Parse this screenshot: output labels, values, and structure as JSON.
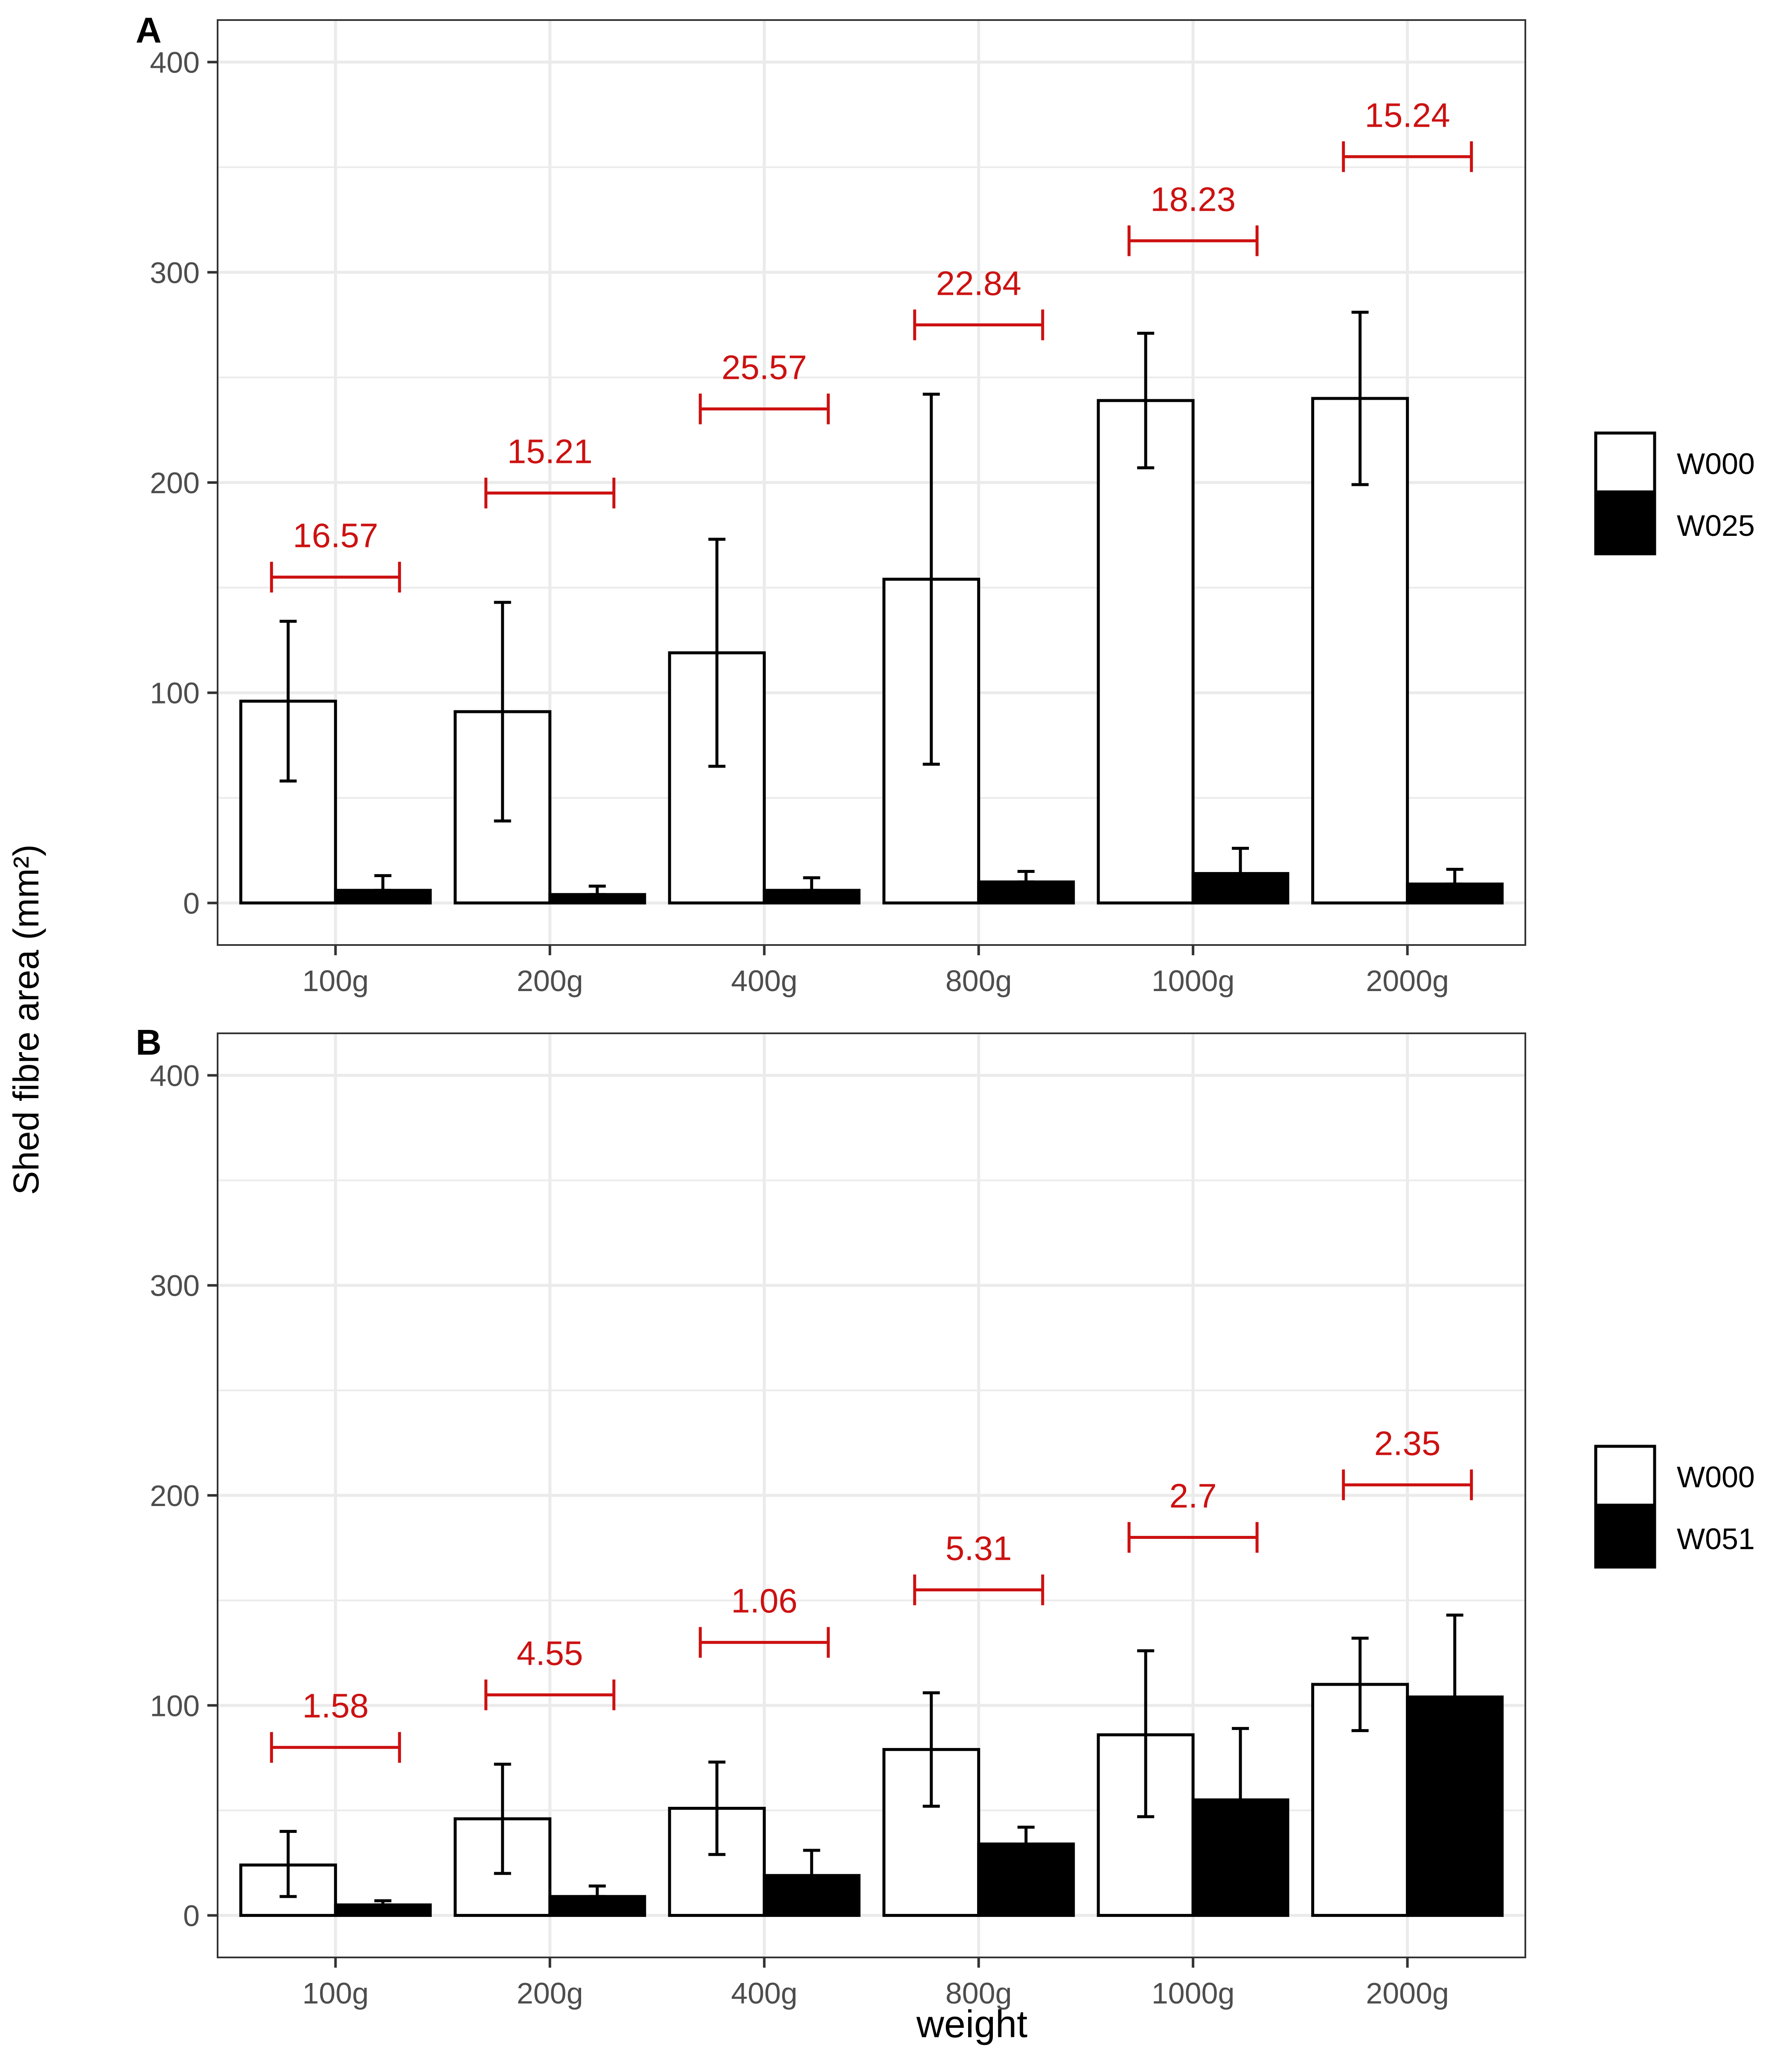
{
  "figure": {
    "ylabel": "Shed fibre area (mm²)",
    "xlabel": "weight"
  },
  "colors": {
    "bar_outline": "#000000",
    "grid": "#ebebeb",
    "axis_text": "#4d4d4d",
    "annotation": "#cc1111",
    "panel_border": "#333333"
  },
  "chart_data": [
    {
      "type": "bar",
      "panel_label": "A",
      "categories": [
        "100g",
        "200g",
        "400g",
        "800g",
        "1000g",
        "2000g"
      ],
      "ylim": [
        -20,
        420
      ],
      "yticks": [
        0,
        100,
        200,
        300,
        400
      ],
      "grid": true,
      "legend_position": "right",
      "series": [
        {
          "name": "W000",
          "fill": "#ffffff",
          "values": [
            96,
            91,
            119,
            154,
            239,
            240
          ],
          "error_low": [
            58,
            39,
            65,
            66,
            207,
            199
          ],
          "error_high": [
            134,
            143,
            173,
            242,
            271,
            281
          ]
        },
        {
          "name": "W025",
          "fill": "#000000",
          "values": [
            6,
            4,
            6,
            10,
            14,
            9
          ],
          "error_low": [
            6,
            4,
            6,
            10,
            14,
            9
          ],
          "error_high": [
            13,
            8,
            12,
            15,
            26,
            16
          ]
        }
      ],
      "annotations": [
        {
          "category": "100g",
          "y": 155,
          "text": "16.57"
        },
        {
          "category": "200g",
          "y": 195,
          "text": "15.21"
        },
        {
          "category": "400g",
          "y": 235,
          "text": "25.57"
        },
        {
          "category": "800g",
          "y": 275,
          "text": "22.84"
        },
        {
          "category": "1000g",
          "y": 315,
          "text": "18.23"
        },
        {
          "category": "2000g",
          "y": 355,
          "text": "15.24"
        }
      ]
    },
    {
      "type": "bar",
      "panel_label": "B",
      "categories": [
        "100g",
        "200g",
        "400g",
        "800g",
        "1000g",
        "2000g"
      ],
      "ylim": [
        -20,
        420
      ],
      "yticks": [
        0,
        100,
        200,
        300,
        400
      ],
      "grid": true,
      "legend_position": "right",
      "series": [
        {
          "name": "W000",
          "fill": "#ffffff",
          "values": [
            24,
            46,
            51,
            79,
            86,
            110
          ],
          "error_low": [
            9,
            20,
            29,
            52,
            47,
            88
          ],
          "error_high": [
            40,
            72,
            73,
            106,
            126,
            132
          ]
        },
        {
          "name": "W051",
          "fill": "#000000",
          "values": [
            5,
            9,
            19,
            34,
            55,
            104
          ],
          "error_low": [
            5,
            9,
            9,
            28,
            22,
            65
          ],
          "error_high": [
            7,
            14,
            31,
            42,
            89,
            143
          ]
        }
      ],
      "annotations": [
        {
          "category": "100g",
          "y": 80,
          "text": "1.58"
        },
        {
          "category": "200g",
          "y": 105,
          "text": "4.55"
        },
        {
          "category": "400g",
          "y": 130,
          "text": "1.06"
        },
        {
          "category": "800g",
          "y": 155,
          "text": "5.31"
        },
        {
          "category": "1000g",
          "y": 180,
          "text": "2.7"
        },
        {
          "category": "2000g",
          "y": 205,
          "text": "2.35"
        }
      ]
    }
  ]
}
